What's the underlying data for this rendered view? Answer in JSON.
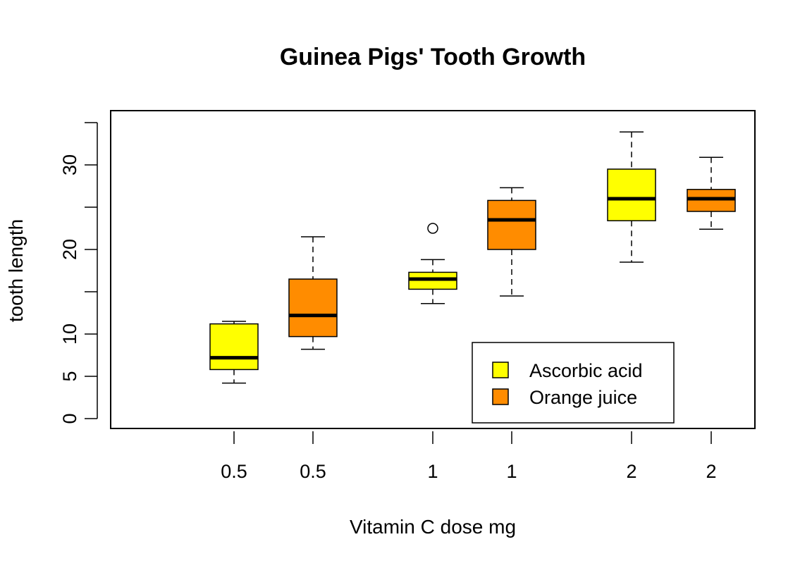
{
  "chart_data": {
    "type": "box",
    "title": "Guinea Pigs' Tooth Growth",
    "xlabel": "Vitamin C dose mg",
    "ylabel": "tooth length",
    "ylim": [
      -1.2,
      36.5
    ],
    "yticks": [
      0,
      5,
      10,
      15,
      20,
      25,
      30,
      35
    ],
    "yticklabels": [
      "0",
      "5",
      "10",
      "",
      "20",
      "",
      "30",
      ""
    ],
    "grid": false,
    "legend_position": "bottom-right",
    "series": [
      {
        "name": "Ascorbic acid",
        "color": "#FFFF00"
      },
      {
        "name": "Orange juice",
        "color": "#FF8C00"
      }
    ],
    "boxes": [
      {
        "label": "0.5",
        "series": "Ascorbic acid",
        "min": 4.2,
        "q1": 5.8,
        "median": 7.2,
        "q3": 11.2,
        "max": 11.5,
        "outliers": []
      },
      {
        "label": "0.5",
        "series": "Orange juice",
        "min": 8.2,
        "q1": 9.7,
        "median": 12.2,
        "q3": 16.5,
        "max": 21.5,
        "outliers": []
      },
      {
        "label": "1",
        "series": "Ascorbic acid",
        "min": 13.6,
        "q1": 15.3,
        "median": 16.5,
        "q3": 17.3,
        "max": 18.8,
        "outliers": [
          22.5
        ]
      },
      {
        "label": "1",
        "series": "Orange juice",
        "min": 14.5,
        "q1": 20.0,
        "median": 23.5,
        "q3": 25.8,
        "max": 27.3,
        "outliers": []
      },
      {
        "label": "2",
        "series": "Ascorbic acid",
        "min": 18.5,
        "q1": 23.4,
        "median": 26.0,
        "q3": 29.5,
        "max": 33.9,
        "outliers": []
      },
      {
        "label": "2",
        "series": "Orange juice",
        "min": 22.4,
        "q1": 24.5,
        "median": 26.0,
        "q3": 27.1,
        "max": 30.9,
        "outliers": []
      }
    ]
  }
}
